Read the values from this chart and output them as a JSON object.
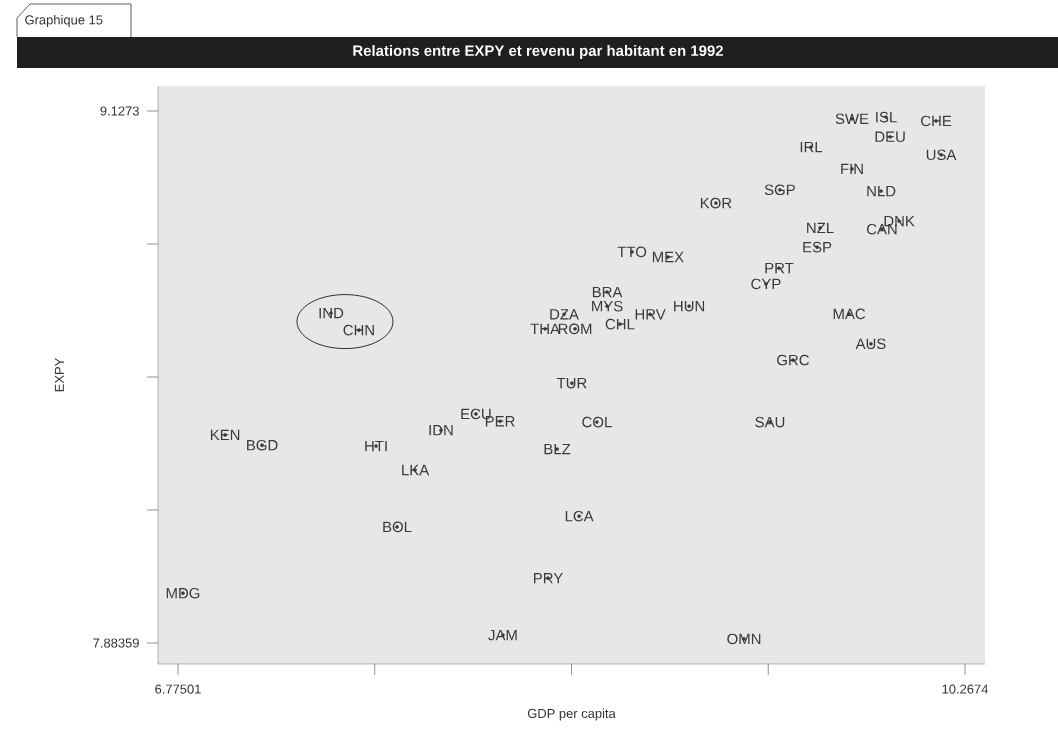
{
  "chart_data": {
    "type": "scatter",
    "title": "Relations entre EXPY et revenu par habitant en 1992",
    "annotations": [
      "Graphique 15"
    ],
    "xlabel": "GDP per capita",
    "ylabel": "EXPY",
    "xlim": [
      6.6863,
      10.3562
    ],
    "ylim": [
      7.8345,
      9.1858
    ],
    "xticks": [
      6.77501,
      {
        "value": 7.64811,
        "label": null
      },
      {
        "value": 8.52121,
        "label": null
      },
      {
        "value": 9.39431,
        "label": null
      },
      10.2674
    ],
    "yticks": [
      7.88359,
      {
        "value": 8.19452,
        "label": null
      },
      {
        "value": 8.50545,
        "label": null
      },
      {
        "value": 8.81638,
        "label": null
      },
      9.1273
    ],
    "grid": false,
    "marker": "circle",
    "series": [
      {
        "color": "#3a3a3a",
        "x": [
          9.766,
          9.917,
          10.139,
          9.935,
          9.584,
          10.161,
          9.766,
          9.446,
          9.895,
          9.162,
          9.975,
          9.624,
          9.899,
          9.611,
          8.79,
          8.949,
          9.442,
          9.384,
          8.679,
          8.679,
          9.043,
          8.488,
          8.87,
          8.736,
          9.753,
          7.454,
          8.404,
          8.537,
          7.578,
          9.85,
          9.504,
          8.523,
          8.097,
          8.204,
          8.634,
          9.402,
          6.984,
          7.942,
          7.148,
          7.654,
          8.457,
          7.827,
          8.555,
          7.747,
          8.417,
          6.797,
          8.217,
          9.287
        ],
        "values": [
          9.109,
          9.113,
          9.104,
          9.067,
          9.043,
          9.025,
          8.992,
          8.943,
          8.94,
          8.912,
          8.87,
          8.854,
          8.851,
          8.809,
          8.798,
          8.786,
          8.76,
          8.723,
          8.704,
          8.671,
          8.671,
          8.652,
          8.652,
          8.629,
          8.653,
          8.655,
          8.618,
          8.618,
          8.615,
          8.583,
          8.545,
          8.491,
          8.419,
          8.402,
          8.4,
          8.4,
          8.37,
          8.381,
          8.346,
          8.344,
          8.337,
          8.288,
          8.18,
          8.155,
          8.035,
          8.0,
          7.902,
          7.893
        ],
        "value_labels": [
          "SWE",
          "ISL",
          "CHE",
          "DEU",
          "IRL",
          "USA",
          "FIN",
          "SGP",
          "NLD",
          "KOR",
          "DNK",
          "NZL",
          "CAN",
          "ESP",
          "TTO",
          "MEX",
          "PRT",
          "CYP",
          "BRA",
          "MYS",
          "HUN",
          "DZA",
          "HRV",
          "CHL",
          "MAC",
          "IND",
          "THA",
          "ROM",
          "CHN",
          "AUS",
          "GRC",
          "TUR",
          "ECU",
          "PER",
          "COL",
          "SAU",
          "KEN",
          "IDN",
          "BGD",
          "HTI",
          "BLZ",
          "LKA",
          "LCA",
          "BOL",
          "PRY",
          "MDG",
          "JAM",
          "OMN"
        ]
      }
    ]
  }
}
